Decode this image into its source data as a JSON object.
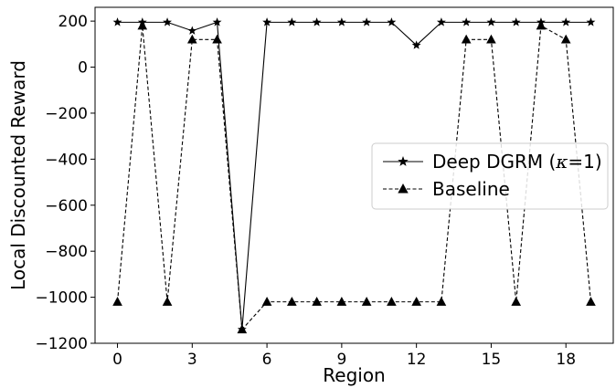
{
  "chart_data": {
    "type": "line",
    "xlabel": "Region",
    "ylabel": "Local Discounted Reward",
    "xlim": [
      -0.9,
      19.9
    ],
    "ylim": [
      -1200,
      260
    ],
    "xticks": [
      0,
      3,
      6,
      9,
      12,
      15,
      18
    ],
    "xtick_labels": [
      "0",
      "3",
      "6",
      "9",
      "12",
      "15",
      "18"
    ],
    "yticks": [
      -1200,
      -1000,
      -800,
      -600,
      -400,
      -200,
      0,
      200
    ],
    "ytick_labels": [
      "−1200",
      "−1000",
      "−800",
      "−600",
      "−400",
      "−200",
      "0",
      "200"
    ],
    "grid": false,
    "legend_position": "center-right",
    "x": [
      0,
      1,
      2,
      3,
      4,
      5,
      6,
      7,
      8,
      9,
      10,
      11,
      12,
      13,
      14,
      15,
      16,
      17,
      18,
      19
    ],
    "series": [
      {
        "name": "Deep DGRM (κ=1)",
        "legend_parts": [
          "Deep DGRM (",
          "κ",
          "=1)"
        ],
        "marker": "star",
        "linestyle": "solid",
        "color": "#000000",
        "values": [
          195,
          195,
          195,
          158,
          195,
          -1140,
          195,
          195,
          195,
          195,
          195,
          195,
          95,
          195,
          195,
          195,
          195,
          195,
          195,
          195
        ]
      },
      {
        "name": "Baseline",
        "legend_parts": [
          "Baseline"
        ],
        "marker": "triangle",
        "linestyle": "dashed",
        "color": "#000000",
        "values": [
          -1020,
          180,
          -1020,
          120,
          120,
          -1140,
          -1020,
          -1020,
          -1020,
          -1020,
          -1020,
          -1020,
          -1020,
          -1020,
          120,
          120,
          -1020,
          180,
          120,
          -1020
        ]
      }
    ]
  }
}
